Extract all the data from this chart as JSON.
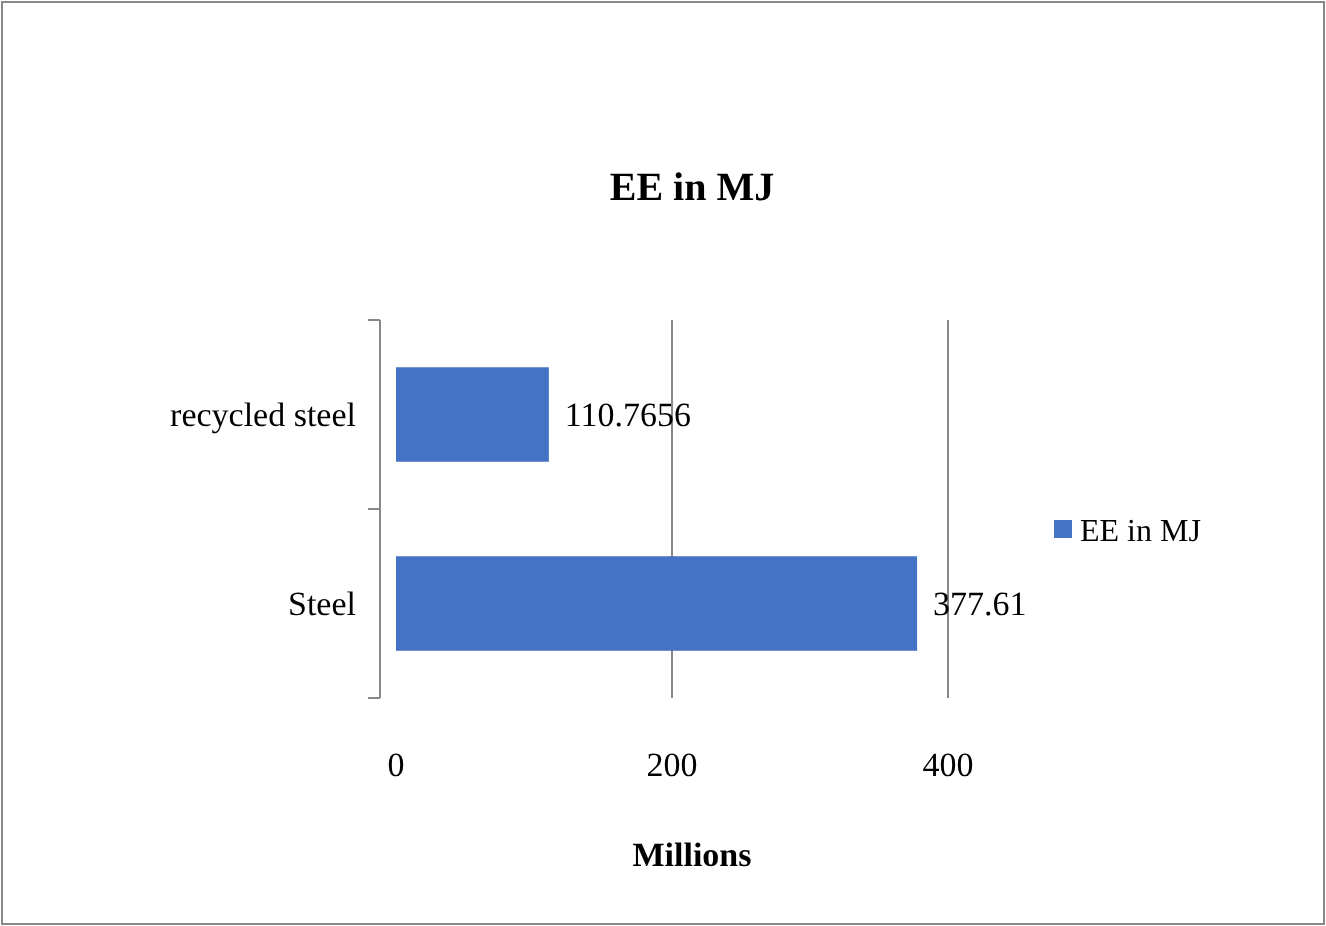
{
  "chart_data": {
    "type": "bar",
    "orientation": "horizontal",
    "title": "EE in MJ",
    "xlabel": "Millions",
    "categories": [
      "recycled steel",
      "Steel"
    ],
    "series": [
      {
        "name": "EE in MJ",
        "color": "#4472c4",
        "values": [
          110.7656,
          377.61
        ]
      }
    ],
    "xlim": [
      0,
      400
    ],
    "xticks": [
      0,
      200,
      400
    ],
    "grid": "x",
    "legend": "right",
    "data_labels": true
  }
}
